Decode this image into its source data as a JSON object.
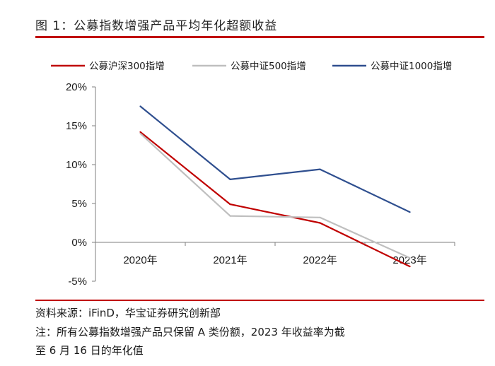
{
  "figure": {
    "title": "图 1：公募指数增强产品平均年化超额收益",
    "source": "资料来源：iFinD，华宝证券研究创新部",
    "note_line1": "注：所有公募指数增强产品只保留 A 类份额，2023 年收益率为截",
    "note_line2": "至 6 月 16 日的年化值"
  },
  "chart_data": {
    "type": "line",
    "categories": [
      "2020年",
      "2021年",
      "2022年",
      "2023年"
    ],
    "series": [
      {
        "name": "公募沪深300指增",
        "color": "#c00000",
        "values": [
          14.2,
          4.9,
          2.5,
          -3.1
        ]
      },
      {
        "name": "公募中证500指增",
        "color": "#bfbfbf",
        "values": [
          14.0,
          3.4,
          3.2,
          -2.0
        ]
      },
      {
        "name": "公募中证1000指增",
        "color": "#2f4f8f",
        "values": [
          17.5,
          8.1,
          9.4,
          3.9
        ]
      }
    ],
    "yticks": [
      "20%",
      "15%",
      "10%",
      "5%",
      "0%",
      "-5%"
    ],
    "ylim": [
      -5,
      20
    ],
    "legend_position": "top",
    "grid": false
  }
}
